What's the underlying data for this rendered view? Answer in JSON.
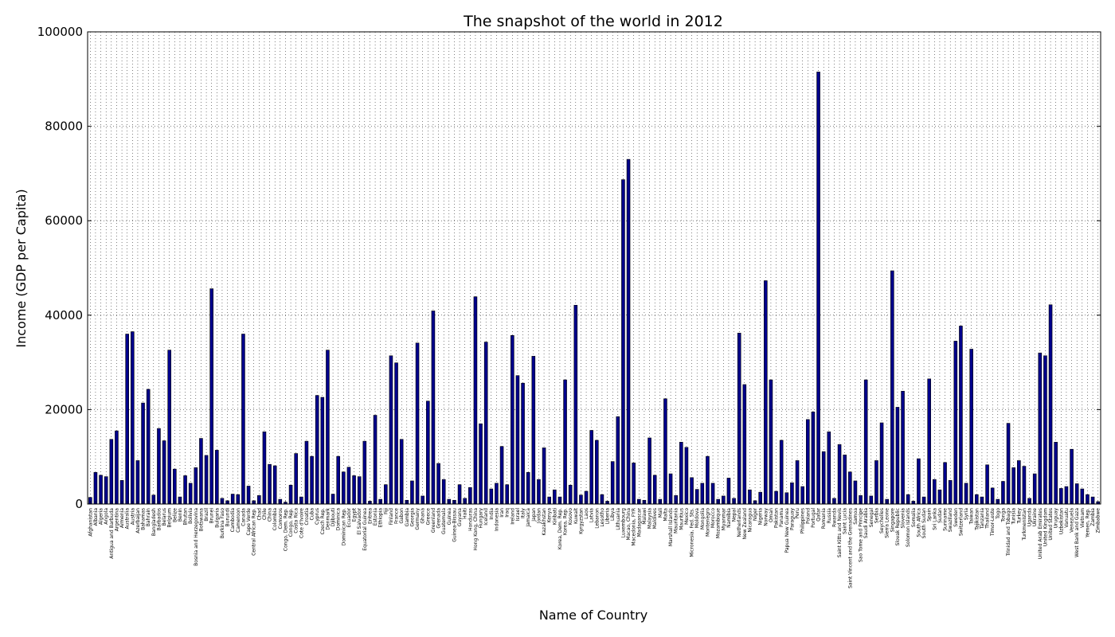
{
  "chart_data": {
    "type": "bar",
    "title": "The snapshot of the world in 2012",
    "xlabel": "Name of Country",
    "ylabel": "Income (GDP per Capita)",
    "ylim": [
      0,
      100000
    ],
    "yticks": [
      "0",
      "20000",
      "40000",
      "60000",
      "80000",
      "100000"
    ],
    "grid": true,
    "bar_color": "#00008b",
    "categories": [
      "Afghanistan",
      "Albania",
      "Algeria",
      "Angola",
      "Antigua and Barbuda",
      "Argentina",
      "Armenia",
      "Australia",
      "Austria",
      "Azerbaijan",
      "Bahamas",
      "Bahrain",
      "Bangladesh",
      "Barbados",
      "Belarus",
      "Belgium",
      "Belize",
      "Benin",
      "Bhutan",
      "Bolivia",
      "Bosnia and Herzegovina",
      "Botswana",
      "Brazil",
      "Brunei",
      "Bulgaria",
      "Burkina Faso",
      "Burundi",
      "Cambodia",
      "Cameroon",
      "Canada",
      "Cape Verde",
      "Central African Rep.",
      "Chad",
      "Chile",
      "China",
      "Colombia",
      "Comoros",
      "Congo, Dem. Rep.",
      "Congo, Rep.",
      "Costa Rica",
      "Cote d'Ivoire",
      "Croatia",
      "Cuba",
      "Cyprus",
      "Czech Rep.",
      "Denmark",
      "Djibouti",
      "Dominica",
      "Dominican Rep.",
      "Ecuador",
      "Egypt",
      "El Salvador",
      "Equatorial Guinea",
      "Eritrea",
      "Estonia",
      "Ethiopia",
      "Fiji",
      "Finland",
      "France",
      "Gabon",
      "Gambia",
      "Georgia",
      "Germany",
      "Ghana",
      "Greece",
      "Greenland",
      "Grenada",
      "Guatemala",
      "Guinea",
      "Guinea-Bissau",
      "Guyana",
      "Haiti",
      "Honduras",
      "Hong Kong, China",
      "Hungary",
      "Iceland",
      "India",
      "Indonesia",
      "Iran",
      "Iraq",
      "Ireland",
      "Israel",
      "Italy",
      "Jamaica",
      "Japan",
      "Jordan",
      "Kazakhstan",
      "Kenya",
      "Kiribati",
      "Korea, Dem. Rep.",
      "Korea, Rep.",
      "Kosovo",
      "Kuwait",
      "Kyrgyzstan",
      "Laos",
      "Latvia",
      "Lebanon",
      "Lesotho",
      "Liberia",
      "Libya",
      "Lithuania",
      "Luxembourg",
      "Macao, China",
      "Macedonia, FYR",
      "Madagascar",
      "Malawi",
      "Malaysia",
      "Maldives",
      "Mali",
      "Malta",
      "Marshall Islands",
      "Mauritania",
      "Mauritius",
      "Mexico",
      "Micronesia, Fed. Sts.",
      "Moldova",
      "Mongolia",
      "Montenegro",
      "Morocco",
      "Mozambique",
      "Myanmar",
      "Namibia",
      "Nepal",
      "Netherlands",
      "New Zealand",
      "Nicaragua",
      "Niger",
      "Nigeria",
      "Norway",
      "Oman",
      "Pakistan",
      "Panama",
      "Papua New Guinea",
      "Paraguay",
      "Peru",
      "Philippines",
      "Poland",
      "Portugal",
      "Qatar",
      "Romania",
      "Russia",
      "Rwanda",
      "Saint Kitts and Nevis",
      "Saint Lucia",
      "Saint Vincent and the Grenadines",
      "Samoa",
      "Sao Tome and Principe",
      "Saudi Arabia",
      "Senegal",
      "Serbia",
      "Seychelles",
      "Sierra Leone",
      "Singapore",
      "Slovak Republic",
      "Slovenia",
      "Solomon Islands",
      "Somalia",
      "South Africa",
      "South Sudan",
      "Spain",
      "Sri Lanka",
      "Sudan",
      "Suriname",
      "Swaziland",
      "Sweden",
      "Switzerland",
      "Syria",
      "Taiwan",
      "Tajikistan",
      "Tanzania",
      "Thailand",
      "Timor-Leste",
      "Togo",
      "Tonga",
      "Trinidad and Tobago",
      "Tunisia",
      "Turkey",
      "Turkmenistan",
      "Uganda",
      "Ukraine",
      "United Arab Emirates",
      "United Kingdom",
      "United States",
      "Uruguay",
      "Uzbekistan",
      "Vanuatu",
      "Venezuela",
      "West Bank and Gaza",
      "Vietnam",
      "Yemen, Rep.",
      "Zambia",
      "Zimbabwe"
    ],
    "values": [
      1400,
      6700,
      6100,
      5800,
      13700,
      15500,
      5000,
      36000,
      36500,
      9200,
      21400,
      24300,
      1900,
      16000,
      13400,
      32600,
      7400,
      1500,
      6000,
      4400,
      7700,
      13900,
      10300,
      45600,
      11400,
      1200,
      700,
      2100,
      2000,
      36000,
      3800,
      700,
      1800,
      15300,
      8400,
      8100,
      1000,
      400,
      4000,
      10700,
      1500,
      13300,
      10100,
      23000,
      22600,
      32600,
      2100,
      10100,
      6800,
      7800,
      6000,
      5800,
      13300,
      600,
      18800,
      1000,
      4100,
      31400,
      29900,
      13700,
      800,
      4900,
      34100,
      1700,
      21800,
      40900,
      8600,
      5200,
      1000,
      800,
      4100,
      1200,
      3500,
      43900,
      17000,
      34300,
      3200,
      4400,
      12200,
      4100,
      35700,
      27200,
      25600,
      6700,
      31300,
      5200,
      11900,
      1500,
      3000,
      1500,
      26300,
      4000,
      42100,
      1900,
      2700,
      15600,
      13500,
      2000,
      600,
      9000,
      18500,
      68700,
      73000,
      8700,
      1000,
      800,
      14000,
      6100,
      1000,
      22300,
      6400,
      1800,
      13100,
      12000,
      5600,
      3100,
      4400,
      10100,
      4400,
      1000,
      1700,
      5500,
      1200,
      36200,
      25300,
      3000,
      700,
      2500,
      47300,
      26300,
      2700,
      13500,
      2400,
      4500,
      9200,
      3700,
      17900,
      19500,
      91500,
      11100,
      15300,
      1200,
      12600,
      10400,
      6800,
      4900,
      1800,
      26300,
      1700,
      9200,
      17200,
      1000,
      49400,
      20500,
      23900,
      2000,
      600,
      9600,
      1500,
      26500,
      5200,
      3000,
      8800,
      5000,
      34500,
      37700,
      4400,
      32800,
      2000,
      1500,
      8300,
      3400,
      1000,
      4800,
      17100,
      7700,
      9200,
      8000,
      1200,
      6400,
      32000,
      31400,
      42200,
      13100,
      3300,
      3700,
      11600,
      4300,
      3200,
      2000,
      1500,
      500
    ]
  }
}
